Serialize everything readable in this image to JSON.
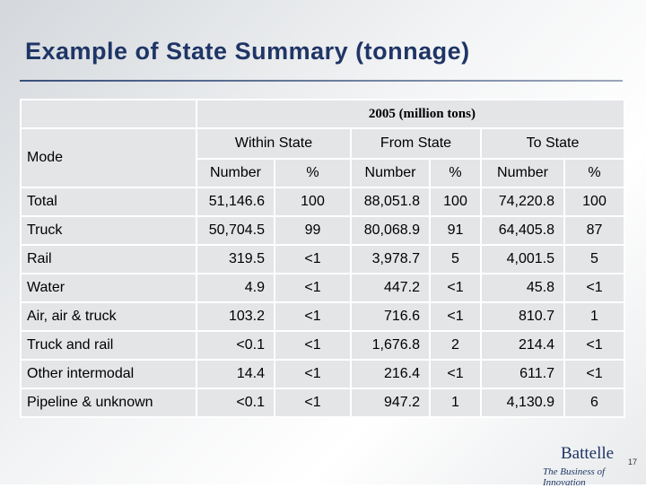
{
  "header": {
    "title": "Example of State Summary (tonnage)"
  },
  "table": {
    "caption": "2005 (million tons)",
    "mode_label": "Mode",
    "groups": [
      "Within State",
      "From State",
      "To State"
    ],
    "subheaders": [
      "Number",
      "%",
      "Number",
      "%",
      "Number",
      "%"
    ],
    "rows": [
      [
        "Total",
        "51,146.6",
        "100",
        "88,051.8",
        "100",
        "74,220.8",
        "100"
      ],
      [
        "Truck",
        "50,704.5",
        "99",
        "80,068.9",
        "91",
        "64,405.8",
        "87"
      ],
      [
        "Rail",
        "319.5",
        "<1",
        "3,978.7",
        "5",
        "4,001.5",
        "5"
      ],
      [
        "Water",
        "4.9",
        "<1",
        "447.2",
        "<1",
        "45.8",
        "<1"
      ],
      [
        "Air, air & truck",
        "103.2",
        "<1",
        "716.6",
        "<1",
        "810.7",
        "1"
      ],
      [
        "Truck and rail",
        "<0.1",
        "<1",
        "1,676.8",
        "2",
        "214.4",
        "<1"
      ],
      [
        "Other intermodal",
        "14.4",
        "<1",
        "216.4",
        "<1",
        "611.7",
        "<1"
      ],
      [
        "Pipeline & unknown",
        "<0.1",
        "<1",
        "947.2",
        "1",
        "4,130.9",
        "6"
      ]
    ]
  },
  "footer": {
    "page": "17",
    "logo": "Battelle",
    "tagline": "The Business of Innovation"
  }
}
